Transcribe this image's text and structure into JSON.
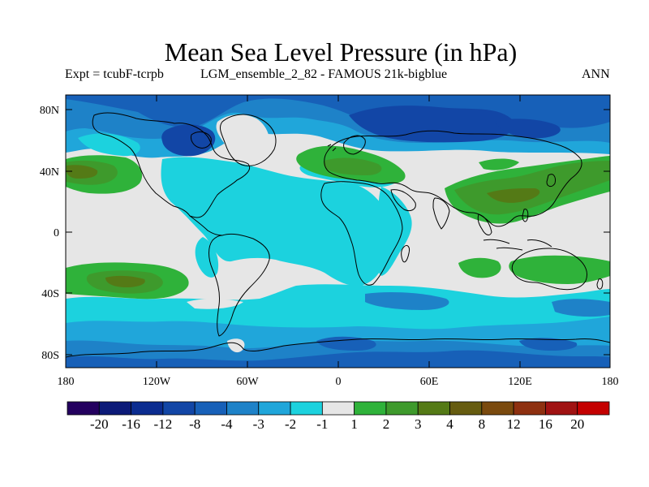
{
  "title": "Mean Sea Level Pressure (in hPa)",
  "subtitle_left": "Expt = tcubF-tcrpb",
  "subtitle_mid": "LGM_ensemble_2_82 - FAMOUS 21k-bigblue",
  "subtitle_right": "ANN",
  "lat_labels": [
    "80N",
    "40N",
    "0",
    "40S",
    "80S"
  ],
  "lon_labels": [
    "180",
    "120W",
    "60W",
    "0",
    "60E",
    "120E",
    "180"
  ],
  "colorbar": {
    "colors": [
      "#24005f",
      "#0c1a78",
      "#0b2c90",
      "#1246a6",
      "#1760b8",
      "#1e82c8",
      "#20a6da",
      "#1cd2de",
      "#e6e6e6",
      "#2fb23a",
      "#3e9a2c",
      "#547a16",
      "#665c10",
      "#7a4a0e",
      "#8e3010",
      "#a01212",
      "#c40000"
    ],
    "labels": [
      "-20",
      "-16",
      "-12",
      "-8",
      "-4",
      "-3",
      "-2",
      "-1",
      "1",
      "2",
      "3",
      "4",
      "8",
      "12",
      "16",
      "20"
    ]
  },
  "palette": {
    "background_neutral": "#e6e6e6",
    "cyan": "#1cd2de",
    "lightblue": "#20a6da",
    "midblue": "#1e82c8",
    "blue": "#1760b8",
    "darkblue": "#1246a6",
    "green": "#2fb23a",
    "darkgreen": "#3e9a2c",
    "olive": "#547a16",
    "brown": "#665c10"
  }
}
